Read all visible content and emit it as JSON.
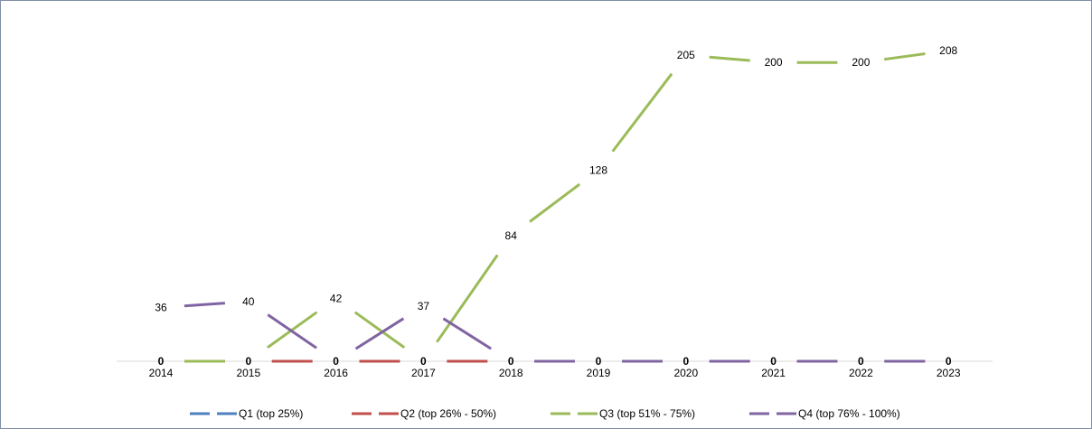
{
  "chart_data": {
    "type": "line",
    "title": "",
    "xlabel": "",
    "ylabel": "",
    "ylim": [
      0,
      220
    ],
    "grid": false,
    "legend_position": "bottom",
    "categories": [
      "2014",
      "2015",
      "2016",
      "2017",
      "2018",
      "2019",
      "2020",
      "2021",
      "2022",
      "2023"
    ],
    "series": [
      {
        "name": "Q1 (top 25%)",
        "color": "#4e81bd",
        "values": [
          0,
          0,
          0,
          0,
          0,
          0,
          0,
          0,
          0,
          0
        ]
      },
      {
        "name": "Q2 (top 26% - 50%)",
        "color": "#c0504d",
        "values": [
          0,
          0,
          0,
          0,
          0,
          0,
          0,
          0,
          0,
          0
        ]
      },
      {
        "name": "Q3 (top 51% - 75%)",
        "color": "#9bbb59",
        "values": [
          0,
          0,
          42,
          0,
          84,
          128,
          205,
          200,
          200,
          208
        ]
      },
      {
        "name": "Q4 (top 76% - 100%)",
        "color": "#8064a2",
        "values": [
          36,
          40,
          0,
          37,
          0,
          0,
          0,
          0,
          0,
          0
        ]
      }
    ],
    "data_labels": [
      "36",
      "40",
      "42",
      "37",
      "84",
      "128",
      "205",
      "200",
      "200",
      "208",
      "0",
      "0",
      "0",
      "0",
      "0",
      "0",
      "0",
      "0",
      "0",
      "0"
    ]
  }
}
